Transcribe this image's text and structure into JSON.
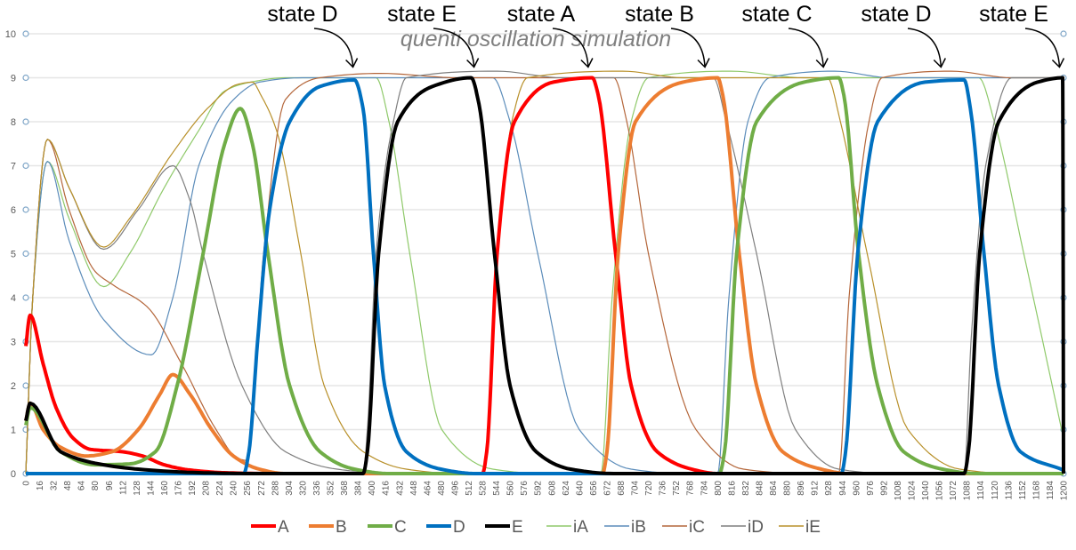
{
  "chart_data": {
    "type": "line",
    "title": "quenti oscillation simulation",
    "xlabel": "",
    "ylabel": "",
    "xlim": [
      0,
      1200
    ],
    "ylim": [
      0,
      10
    ],
    "x_ticks": [
      0,
      16,
      32,
      48,
      64,
      80,
      96,
      112,
      128,
      144,
      160,
      176,
      192,
      208,
      224,
      240,
      256,
      272,
      288,
      304,
      320,
      336,
      352,
      368,
      384,
      400,
      416,
      432,
      448,
      464,
      480,
      496,
      512,
      528,
      544,
      560,
      576,
      592,
      608,
      624,
      640,
      656,
      672,
      688,
      704,
      720,
      736,
      752,
      768,
      784,
      800,
      816,
      832,
      848,
      864,
      880,
      896,
      912,
      928,
      944,
      960,
      976,
      992,
      1008,
      1024,
      1040,
      1056,
      1072,
      1088,
      1104,
      1120,
      1136,
      1152,
      1168,
      1184,
      1200
    ],
    "y_ticks": [
      0,
      1,
      2,
      3,
      4,
      5,
      6,
      7,
      8,
      9,
      10
    ],
    "grid": true,
    "legend_position": "bottom",
    "annotations": [
      {
        "text": "state D",
        "x": 368,
        "y": 9
      },
      {
        "text": "state E",
        "x": 508,
        "y": 9
      },
      {
        "text": "state A",
        "x": 640,
        "y": 9
      },
      {
        "text": "state B",
        "x": 775,
        "y": 9
      },
      {
        "text": "state C",
        "x": 912,
        "y": 9
      },
      {
        "text": "state D",
        "x": 1048,
        "y": 9
      },
      {
        "text": "state E",
        "x": 1185,
        "y": 9
      }
    ],
    "series": [
      {
        "name": "A",
        "color": "#ff0000",
        "weight": "thick",
        "points": [
          [
            0,
            2.9
          ],
          [
            5,
            3.6
          ],
          [
            20,
            2.5
          ],
          [
            35,
            1.5
          ],
          [
            55,
            0.8
          ],
          [
            75,
            0.55
          ],
          [
            110,
            0.5
          ],
          [
            135,
            0.4
          ],
          [
            160,
            0.2
          ],
          [
            190,
            0.08
          ],
          [
            230,
            0.02
          ],
          [
            280,
            0
          ],
          [
            528,
            0
          ],
          [
            533,
            0.5
          ],
          [
            545,
            5
          ],
          [
            565,
            8
          ],
          [
            610,
            8.9
          ],
          [
            655,
            9
          ],
          [
            662,
            8.6
          ],
          [
            682,
            5
          ],
          [
            700,
            2
          ],
          [
            730,
            0.5
          ],
          [
            770,
            0.1
          ],
          [
            800,
            0
          ],
          [
            1200,
            0
          ]
        ]
      },
      {
        "name": "B",
        "color": "#ed7d31",
        "weight": "thick",
        "points": [
          [
            0,
            1.2
          ],
          [
            5,
            1.6
          ],
          [
            20,
            1
          ],
          [
            40,
            0.6
          ],
          [
            70,
            0.4
          ],
          [
            100,
            0.5
          ],
          [
            130,
            1
          ],
          [
            155,
            1.8
          ],
          [
            170,
            2.25
          ],
          [
            190,
            1.8
          ],
          [
            215,
            1
          ],
          [
            240,
            0.4
          ],
          [
            270,
            0.1
          ],
          [
            300,
            0
          ],
          [
            667,
            0
          ],
          [
            672,
            0.5
          ],
          [
            685,
            5
          ],
          [
            705,
            8
          ],
          [
            760,
            8.9
          ],
          [
            800,
            9
          ],
          [
            806,
            8.6
          ],
          [
            825,
            5
          ],
          [
            845,
            2
          ],
          [
            875,
            0.5
          ],
          [
            920,
            0.1
          ],
          [
            950,
            0
          ],
          [
            1200,
            0
          ]
        ]
      },
      {
        "name": "C",
        "color": "#70ad47",
        "weight": "thick",
        "points": [
          [
            0,
            1.1
          ],
          [
            5,
            1.5
          ],
          [
            40,
            0.5
          ],
          [
            80,
            0.2
          ],
          [
            120,
            0.22
          ],
          [
            150,
            0.5
          ],
          [
            175,
            2
          ],
          [
            205,
            5
          ],
          [
            230,
            7.5
          ],
          [
            248,
            8.3
          ],
          [
            262,
            7.5
          ],
          [
            280,
            5
          ],
          [
            305,
            2
          ],
          [
            340,
            0.5
          ],
          [
            380,
            0.1
          ],
          [
            420,
            0
          ],
          [
            802,
            0
          ],
          [
            808,
            0.5
          ],
          [
            822,
            5
          ],
          [
            845,
            8
          ],
          [
            900,
            8.9
          ],
          [
            940,
            9
          ],
          [
            946,
            8.6
          ],
          [
            963,
            5
          ],
          [
            985,
            2
          ],
          [
            1015,
            0.5
          ],
          [
            1060,
            0.1
          ],
          [
            1100,
            0
          ],
          [
            1200,
            0
          ]
        ]
      },
      {
        "name": "D",
        "color": "#0070c0",
        "weight": "thick",
        "points": [
          [
            0,
            0
          ],
          [
            252,
            0
          ],
          [
            258,
            0.5
          ],
          [
            268,
            3
          ],
          [
            282,
            6
          ],
          [
            305,
            8
          ],
          [
            340,
            8.8
          ],
          [
            380,
            8.95
          ],
          [
            390,
            8.3
          ],
          [
            402,
            5
          ],
          [
            415,
            2
          ],
          [
            440,
            0.5
          ],
          [
            480,
            0.1
          ],
          [
            520,
            0
          ],
          [
            943,
            0
          ],
          [
            948,
            0.5
          ],
          [
            962,
            5
          ],
          [
            985,
            8
          ],
          [
            1040,
            8.9
          ],
          [
            1085,
            8.95
          ],
          [
            1093,
            8.2
          ],
          [
            1108,
            5
          ],
          [
            1125,
            2
          ],
          [
            1150,
            0.5
          ],
          [
            1200,
            0.08
          ]
        ]
      },
      {
        "name": "E",
        "color": "#000000",
        "weight": "thick",
        "points": [
          [
            0,
            1.2
          ],
          [
            5,
            1.6
          ],
          [
            40,
            0.5
          ],
          [
            90,
            0.2
          ],
          [
            130,
            0.1
          ],
          [
            200,
            0.02
          ],
          [
            260,
            0
          ],
          [
            390,
            0
          ],
          [
            395,
            0.5
          ],
          [
            408,
            5
          ],
          [
            430,
            8
          ],
          [
            470,
            8.8
          ],
          [
            515,
            9
          ],
          [
            524,
            8.4
          ],
          [
            542,
            5
          ],
          [
            560,
            2
          ],
          [
            590,
            0.5
          ],
          [
            630,
            0.1
          ],
          [
            680,
            0
          ],
          [
            1085,
            0
          ],
          [
            1090,
            0.5
          ],
          [
            1103,
            5
          ],
          [
            1125,
            8
          ],
          [
            1170,
            8.9
          ],
          [
            1199,
            9
          ],
          [
            1200,
            0
          ]
        ]
      },
      {
        "name": "iA",
        "color": "#8fc96a",
        "weight": "thin",
        "points": [
          [
            0,
            0
          ],
          [
            8,
            4
          ],
          [
            25,
            7.1
          ],
          [
            50,
            5.8
          ],
          [
            90,
            4.25
          ],
          [
            120,
            5
          ],
          [
            160,
            6.5
          ],
          [
            200,
            7.8
          ],
          [
            230,
            8.7
          ],
          [
            260,
            8.9
          ],
          [
            300,
            9
          ],
          [
            405,
            9
          ],
          [
            420,
            8
          ],
          [
            444,
            5
          ],
          [
            481,
            1
          ],
          [
            540,
            0.1
          ],
          [
            600,
            0
          ],
          [
            665,
            0
          ],
          [
            678,
            4
          ],
          [
            700,
            8
          ],
          [
            720,
            9
          ],
          [
            815,
            9.15
          ],
          [
            900,
            9
          ],
          [
            1102,
            9
          ],
          [
            1120,
            8
          ],
          [
            1154,
            5
          ],
          [
            1200,
            0.8
          ]
        ]
      },
      {
        "name": "iB",
        "color": "#5b8cba",
        "weight": "thin",
        "points": [
          [
            0,
            0
          ],
          [
            8,
            4
          ],
          [
            25,
            7.1
          ],
          [
            50,
            5.3
          ],
          [
            90,
            3.5
          ],
          [
            145,
            2.7
          ],
          [
            170,
            4
          ],
          [
            200,
            7
          ],
          [
            240,
            8.5
          ],
          [
            270,
            8.9
          ],
          [
            320,
            9
          ],
          [
            540,
            9
          ],
          [
            560,
            8
          ],
          [
            592,
            5
          ],
          [
            640,
            1
          ],
          [
            700,
            0.1
          ],
          [
            760,
            0
          ],
          [
            800,
            0
          ],
          [
            813,
            4
          ],
          [
            835,
            8
          ],
          [
            860,
            9
          ],
          [
            935,
            9.15
          ],
          [
            1000,
            9
          ],
          [
            1200,
            9
          ]
        ]
      },
      {
        "name": "iC",
        "color": "#b4663a",
        "weight": "thin",
        "points": [
          [
            0,
            0
          ],
          [
            8,
            4
          ],
          [
            25,
            7.6
          ],
          [
            50,
            6
          ],
          [
            80,
            4.6
          ],
          [
            100,
            4.3
          ],
          [
            140,
            3.8
          ],
          [
            180,
            2.5
          ],
          [
            220,
            1
          ],
          [
            245,
            0.35
          ],
          [
            255,
            0.3
          ],
          [
            262,
            1.5
          ],
          [
            275,
            5
          ],
          [
            300,
            8.5
          ],
          [
            340,
            9
          ],
          [
            410,
            9.1
          ],
          [
            500,
            9
          ],
          [
            680,
            9
          ],
          [
            695,
            8
          ],
          [
            720,
            5
          ],
          [
            775,
            1
          ],
          [
            830,
            0.1
          ],
          [
            900,
            0
          ],
          [
            940,
            0
          ],
          [
            952,
            4
          ],
          [
            975,
            8
          ],
          [
            990,
            9
          ],
          [
            1070,
            9.15
          ],
          [
            1140,
            9
          ],
          [
            1200,
            9
          ]
        ]
      },
      {
        "name": "iD",
        "color": "#7f7f7f",
        "weight": "thin",
        "points": [
          [
            0,
            0
          ],
          [
            8,
            4
          ],
          [
            25,
            7.6
          ],
          [
            50,
            6.5
          ],
          [
            90,
            5.1
          ],
          [
            130,
            6
          ],
          [
            170,
            7
          ],
          [
            190,
            6.2
          ],
          [
            205,
            5
          ],
          [
            250,
            2
          ],
          [
            300,
            0.5
          ],
          [
            360,
            0.1
          ],
          [
            390,
            0.05
          ],
          [
            395,
            1
          ],
          [
            405,
            5
          ],
          [
            425,
            8
          ],
          [
            440,
            9
          ],
          [
            545,
            9.15
          ],
          [
            620,
            9
          ],
          [
            795,
            9
          ],
          [
            810,
            8
          ],
          [
            845,
            5
          ],
          [
            890,
            1
          ],
          [
            940,
            0.1
          ],
          [
            1000,
            0
          ],
          [
            1085,
            0
          ],
          [
            1093,
            3
          ],
          [
            1110,
            7
          ],
          [
            1140,
            9
          ],
          [
            1200,
            9
          ]
        ]
      },
      {
        "name": "iE",
        "color": "#b8902a",
        "weight": "thin",
        "points": [
          [
            0,
            0
          ],
          [
            8,
            4
          ],
          [
            25,
            7.6
          ],
          [
            50,
            6.5
          ],
          [
            90,
            5.15
          ],
          [
            120,
            5.8
          ],
          [
            170,
            7.3
          ],
          [
            210,
            8.3
          ],
          [
            245,
            8.85
          ],
          [
            262,
            8.9
          ],
          [
            272,
            8.6
          ],
          [
            290,
            7.8
          ],
          [
            318,
            5
          ],
          [
            345,
            2
          ],
          [
            390,
            0.5
          ],
          [
            440,
            0.1
          ],
          [
            500,
            0
          ],
          [
            530,
            0
          ],
          [
            542,
            4
          ],
          [
            562,
            8
          ],
          [
            580,
            9
          ],
          [
            690,
            9.15
          ],
          [
            760,
            9
          ],
          [
            927,
            9
          ],
          [
            942,
            8
          ],
          [
            973,
            5
          ],
          [
            1020,
            1
          ],
          [
            1080,
            0.1
          ],
          [
            1140,
            0
          ],
          [
            1200,
            0
          ]
        ]
      }
    ]
  }
}
